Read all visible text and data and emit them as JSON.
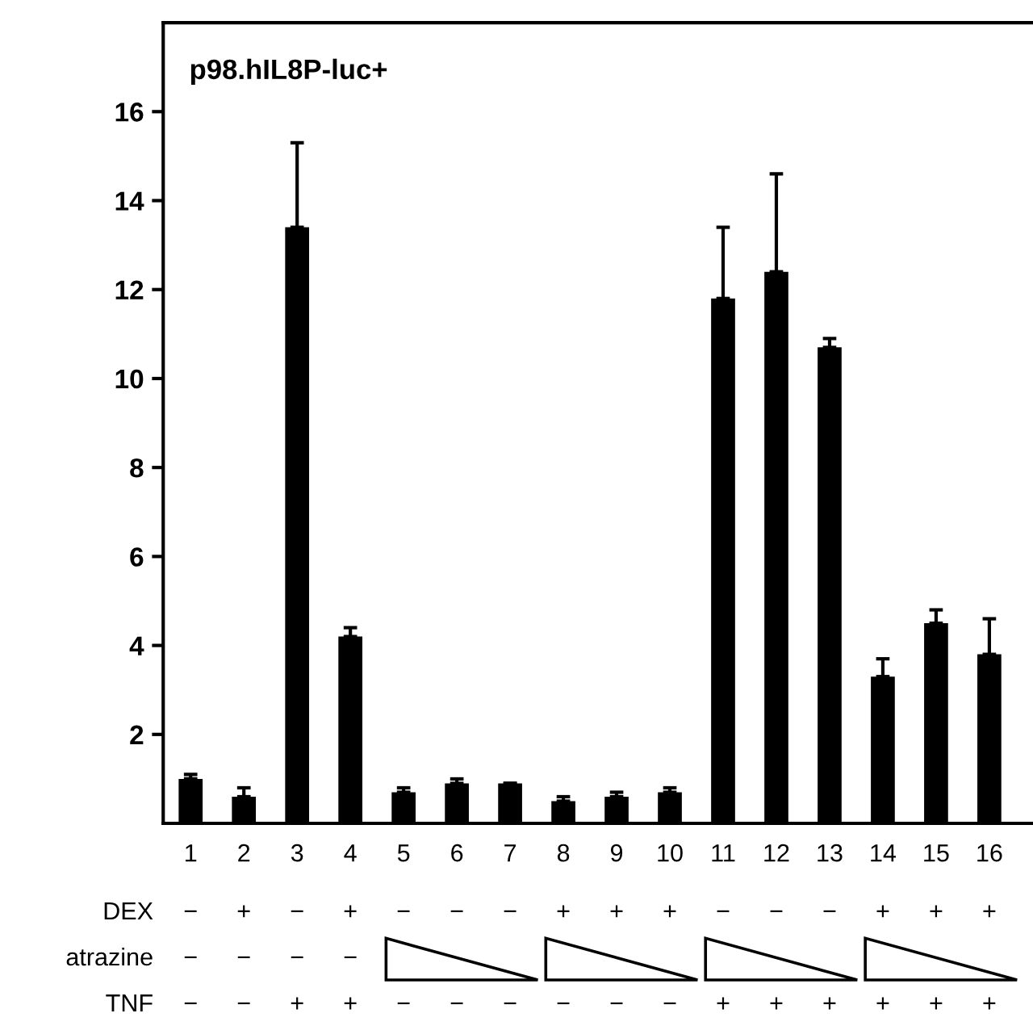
{
  "chart_data": {
    "type": "bar",
    "title": "p98.hIL8P-luc+",
    "categories": [
      "1",
      "2",
      "3",
      "4",
      "5",
      "6",
      "7",
      "8",
      "9",
      "10",
      "11",
      "12",
      "13",
      "14",
      "15",
      "16"
    ],
    "values": [
      1.0,
      0.6,
      13.4,
      4.2,
      0.7,
      0.9,
      0.9,
      0.5,
      0.6,
      0.7,
      11.8,
      12.4,
      10.7,
      3.3,
      4.5,
      3.8
    ],
    "errors": [
      [
        1.0,
        1.1
      ],
      [
        0.6,
        0.8
      ],
      [
        13.4,
        15.3
      ],
      [
        4.2,
        4.4
      ],
      [
        0.7,
        0.8
      ],
      [
        0.9,
        1.0
      ],
      [
        0.9,
        0.9
      ],
      [
        0.5,
        0.6
      ],
      [
        0.6,
        0.7
      ],
      [
        0.7,
        0.8
      ],
      [
        11.8,
        13.4
      ],
      [
        12.4,
        14.6
      ],
      [
        10.7,
        10.9
      ],
      [
        3.3,
        3.7
      ],
      [
        4.5,
        4.8
      ],
      [
        3.8,
        4.6
      ]
    ],
    "color": "#000000",
    "ylim": [
      0,
      18
    ],
    "yticks": [
      2,
      4,
      6,
      8,
      10,
      12,
      14,
      16
    ],
    "grid": false,
    "legend": false,
    "annotations": [
      "DEX",
      "− + − + − − − + + + − − − + + +",
      "atrazine",
      "− − − −",
      "TNF",
      "− − + + − − − − − − + + + + + +"
    ]
  }
}
